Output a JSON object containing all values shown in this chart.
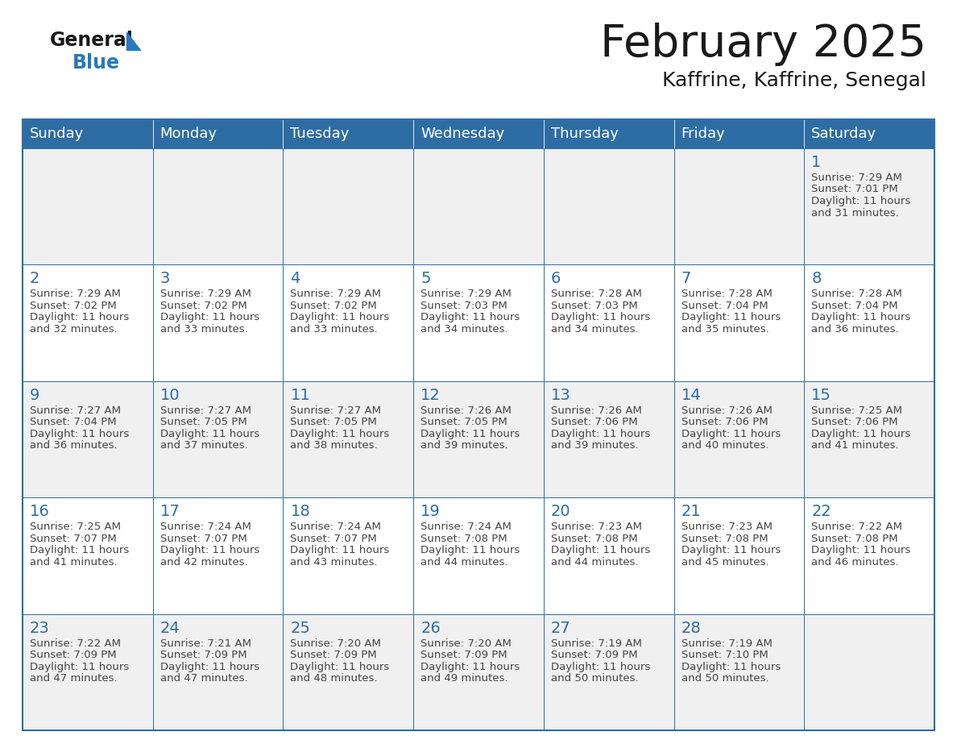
{
  "title": "February 2025",
  "subtitle": "Kaffrine, Kaffrine, Senegal",
  "days_of_week": [
    "Sunday",
    "Monday",
    "Tuesday",
    "Wednesday",
    "Thursday",
    "Friday",
    "Saturday"
  ],
  "header_bg": "#2E6DA4",
  "header_text": "#FFFFFF",
  "cell_bg_even": "#F0F0F0",
  "cell_bg_odd": "#FFFFFF",
  "border_color": "#2E6DA4",
  "day_number_color": "#2E6DA4",
  "info_text_color": "#444444",
  "title_color": "#1a1a1a",
  "logo_black": "#1a1a1a",
  "logo_blue": "#2878BE",
  "logo_triangle": "#2878BE",
  "calendar_data": [
    [
      null,
      null,
      null,
      null,
      null,
      null,
      {
        "day": 1,
        "sunrise": "7:29 AM",
        "sunset": "7:01 PM",
        "daylight": "11 hours and 31 minutes."
      }
    ],
    [
      {
        "day": 2,
        "sunrise": "7:29 AM",
        "sunset": "7:02 PM",
        "daylight": "11 hours and 32 minutes."
      },
      {
        "day": 3,
        "sunrise": "7:29 AM",
        "sunset": "7:02 PM",
        "daylight": "11 hours and 33 minutes."
      },
      {
        "day": 4,
        "sunrise": "7:29 AM",
        "sunset": "7:02 PM",
        "daylight": "11 hours and 33 minutes."
      },
      {
        "day": 5,
        "sunrise": "7:29 AM",
        "sunset": "7:03 PM",
        "daylight": "11 hours and 34 minutes."
      },
      {
        "day": 6,
        "sunrise": "7:28 AM",
        "sunset": "7:03 PM",
        "daylight": "11 hours and 34 minutes."
      },
      {
        "day": 7,
        "sunrise": "7:28 AM",
        "sunset": "7:04 PM",
        "daylight": "11 hours and 35 minutes."
      },
      {
        "day": 8,
        "sunrise": "7:28 AM",
        "sunset": "7:04 PM",
        "daylight": "11 hours and 36 minutes."
      }
    ],
    [
      {
        "day": 9,
        "sunrise": "7:27 AM",
        "sunset": "7:04 PM",
        "daylight": "11 hours and 36 minutes."
      },
      {
        "day": 10,
        "sunrise": "7:27 AM",
        "sunset": "7:05 PM",
        "daylight": "11 hours and 37 minutes."
      },
      {
        "day": 11,
        "sunrise": "7:27 AM",
        "sunset": "7:05 PM",
        "daylight": "11 hours and 38 minutes."
      },
      {
        "day": 12,
        "sunrise": "7:26 AM",
        "sunset": "7:05 PM",
        "daylight": "11 hours and 39 minutes."
      },
      {
        "day": 13,
        "sunrise": "7:26 AM",
        "sunset": "7:06 PM",
        "daylight": "11 hours and 39 minutes."
      },
      {
        "day": 14,
        "sunrise": "7:26 AM",
        "sunset": "7:06 PM",
        "daylight": "11 hours and 40 minutes."
      },
      {
        "day": 15,
        "sunrise": "7:25 AM",
        "sunset": "7:06 PM",
        "daylight": "11 hours and 41 minutes."
      }
    ],
    [
      {
        "day": 16,
        "sunrise": "7:25 AM",
        "sunset": "7:07 PM",
        "daylight": "11 hours and 41 minutes."
      },
      {
        "day": 17,
        "sunrise": "7:24 AM",
        "sunset": "7:07 PM",
        "daylight": "11 hours and 42 minutes."
      },
      {
        "day": 18,
        "sunrise": "7:24 AM",
        "sunset": "7:07 PM",
        "daylight": "11 hours and 43 minutes."
      },
      {
        "day": 19,
        "sunrise": "7:24 AM",
        "sunset": "7:08 PM",
        "daylight": "11 hours and 44 minutes."
      },
      {
        "day": 20,
        "sunrise": "7:23 AM",
        "sunset": "7:08 PM",
        "daylight": "11 hours and 44 minutes."
      },
      {
        "day": 21,
        "sunrise": "7:23 AM",
        "sunset": "7:08 PM",
        "daylight": "11 hours and 45 minutes."
      },
      {
        "day": 22,
        "sunrise": "7:22 AM",
        "sunset": "7:08 PM",
        "daylight": "11 hours and 46 minutes."
      }
    ],
    [
      {
        "day": 23,
        "sunrise": "7:22 AM",
        "sunset": "7:09 PM",
        "daylight": "11 hours and 47 minutes."
      },
      {
        "day": 24,
        "sunrise": "7:21 AM",
        "sunset": "7:09 PM",
        "daylight": "11 hours and 47 minutes."
      },
      {
        "day": 25,
        "sunrise": "7:20 AM",
        "sunset": "7:09 PM",
        "daylight": "11 hours and 48 minutes."
      },
      {
        "day": 26,
        "sunrise": "7:20 AM",
        "sunset": "7:09 PM",
        "daylight": "11 hours and 49 minutes."
      },
      {
        "day": 27,
        "sunrise": "7:19 AM",
        "sunset": "7:09 PM",
        "daylight": "11 hours and 50 minutes."
      },
      {
        "day": 28,
        "sunrise": "7:19 AM",
        "sunset": "7:10 PM",
        "daylight": "11 hours and 50 minutes."
      },
      null
    ]
  ]
}
